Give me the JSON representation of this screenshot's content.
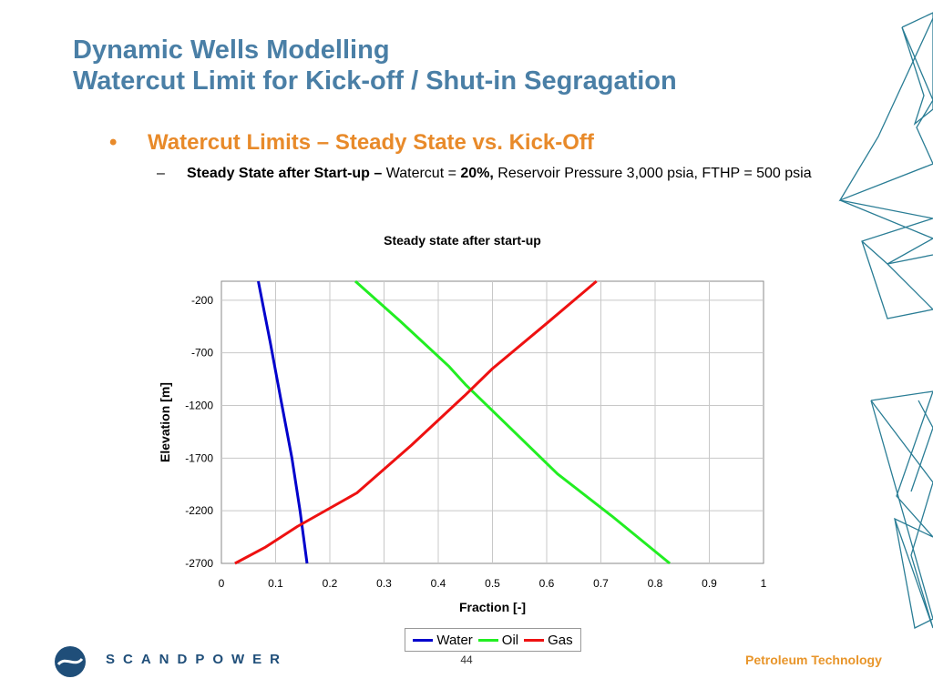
{
  "slide": {
    "title_line1": "Dynamic Wells Modelling",
    "title_line2": "Watercut Limit for Kick-off / Shut-in Segragation",
    "bullet1_marker": "•",
    "bullet1": "Watercut Limits – Steady State vs. Kick-Off",
    "bullet2_marker": "–",
    "bullet2_bold": "Steady State after Start-up –",
    "bullet2_text1": " Watercut = ",
    "bullet2_bold2": "20%,",
    "bullet2_text2": " Reservoir Pressure 3,000 psia, FTHP = 500 psia",
    "page_number": "44",
    "brand": "SCANDPOWER",
    "tagline": "Petroleum Technology"
  },
  "colors": {
    "title": "#4a7fa6",
    "bullet": "#e88a2a",
    "water": "#0000cc",
    "oil": "#22ee22",
    "gas": "#ee1111"
  },
  "chart_data": {
    "type": "line",
    "title": "Steady state after start-up",
    "xlabel": "Fraction [-]",
    "ylabel": "Elevation [m]",
    "xlim": [
      0,
      1
    ],
    "ylim": [
      -2700,
      -20
    ],
    "x_ticks": [
      "0",
      "0.1",
      "0.2",
      "0.3",
      "0.4",
      "0.5",
      "0.6",
      "0.7",
      "0.8",
      "0.9",
      "1"
    ],
    "y_ticks": [
      "-200",
      "-700",
      "-1200",
      "-1700",
      "-2200",
      "-2700"
    ],
    "grid": true,
    "legend_position": "bottom",
    "series": [
      {
        "name": "Water",
        "points": [
          [
            0.068,
            -20
          ],
          [
            0.09,
            -600
          ],
          [
            0.11,
            -1150
          ],
          [
            0.13,
            -1700
          ],
          [
            0.145,
            -2200
          ],
          [
            0.158,
            -2700
          ]
        ]
      },
      {
        "name": "Oil",
        "points": [
          [
            0.247,
            -20
          ],
          [
            0.33,
            -400
          ],
          [
            0.42,
            -830
          ],
          [
            0.45,
            -1000
          ],
          [
            0.52,
            -1350
          ],
          [
            0.62,
            -1850
          ],
          [
            0.72,
            -2250
          ],
          [
            0.827,
            -2700
          ]
        ]
      },
      {
        "name": "Gas",
        "points": [
          [
            0.692,
            -20
          ],
          [
            0.6,
            -420
          ],
          [
            0.5,
            -850
          ],
          [
            0.45,
            -1100
          ],
          [
            0.35,
            -1580
          ],
          [
            0.25,
            -2030
          ],
          [
            0.14,
            -2350
          ],
          [
            0.08,
            -2550
          ],
          [
            0.025,
            -2700
          ]
        ]
      }
    ]
  }
}
